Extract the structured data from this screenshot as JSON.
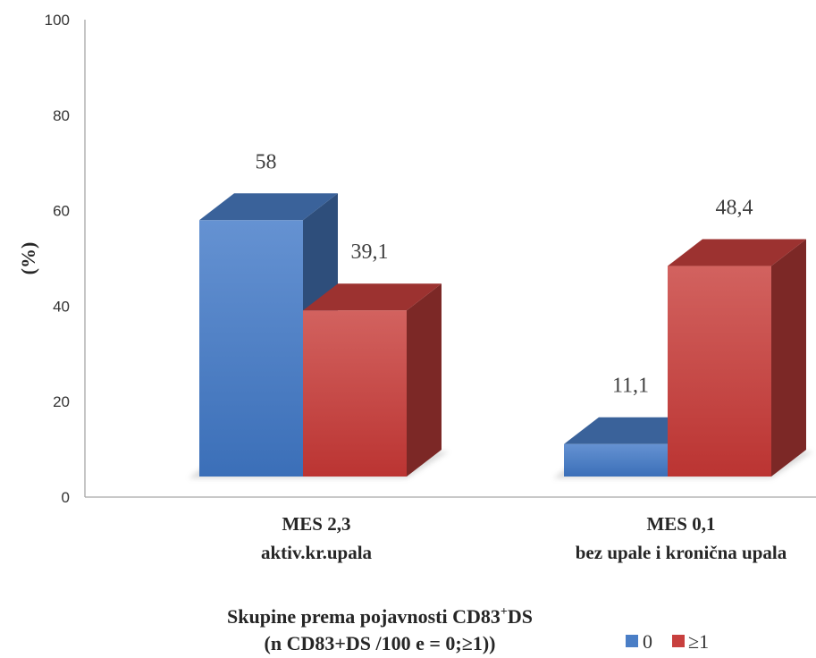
{
  "chart_data": {
    "type": "bar",
    "categories": [
      [
        "MES 2,3",
        "aktiv.kr.upala"
      ],
      [
        "MES 0,1",
        "bez upale i kronična upala"
      ]
    ],
    "series": [
      {
        "name": "0",
        "values": [
          58,
          11.1
        ],
        "value_labels": [
          "58",
          "11,1"
        ],
        "color": "#4a7ec6"
      },
      {
        "name": "≥1",
        "values": [
          39.1,
          48.4
        ],
        "value_labels": [
          "39,1",
          "48,4"
        ],
        "color": "#c8403e"
      }
    ],
    "yticks": [
      "0",
      "20",
      "40",
      "60",
      "80",
      "100"
    ],
    "ylim": [
      0,
      100
    ],
    "ylabel": "(%)",
    "xlabel": {
      "line1_main": "Skupine prema pojavnosti CD83",
      "line1_sup": "+",
      "line1_end": "DS",
      "line2": "(n CD83+DS /100 e = 0;≥1))"
    },
    "legend_position": "bottom-right",
    "grid": false
  }
}
